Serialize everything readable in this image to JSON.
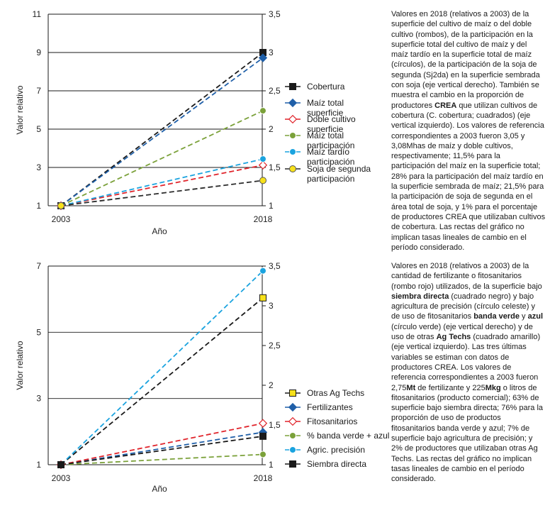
{
  "chart_data": [
    {
      "type": "line",
      "x": [
        "2003",
        "2018"
      ],
      "xlabel": "Año",
      "ylabel": "Valor relativo",
      "ylim": [
        1,
        11
      ],
      "y_ticks": [
        "1",
        "3",
        "5",
        "7",
        "9",
        "11"
      ],
      "y2lim": [
        1,
        3.5
      ],
      "y2_ticks": [
        "1",
        "1,5",
        "2",
        "2,5",
        "3",
        "3,5"
      ],
      "grid": "horizontal",
      "legend_position": "right",
      "series": [
        {
          "name": "Cobertura",
          "axis": "left",
          "values": [
            1,
            9.0
          ],
          "color": "#1a1a1a",
          "marker": "square-filled"
        },
        {
          "name": "Maíz total superficie",
          "axis": "right",
          "values": [
            1,
            2.93
          ],
          "color": "#1f5fa8",
          "marker": "diamond-filled"
        },
        {
          "name": "Doble cultivo superficie",
          "axis": "right",
          "values": [
            1,
            1.53
          ],
          "color": "#e0242b",
          "marker": "diamond-open"
        },
        {
          "name": "Maíz total participación",
          "axis": "right",
          "values": [
            1,
            2.24
          ],
          "color": "#7ba13a",
          "marker": "circle-filled"
        },
        {
          "name": "Maíz tardío participación",
          "axis": "right",
          "values": [
            1,
            1.61
          ],
          "color": "#1aa3df",
          "marker": "circle-filled"
        },
        {
          "name": "Soja de segunda participación",
          "axis": "right",
          "values": [
            1,
            1.33
          ],
          "color": "#2b2b2b",
          "marker": "circle-yellow"
        }
      ],
      "legend_lines": [
        [
          "Cobertura"
        ],
        [
          "Maíz total",
          "superficie"
        ],
        [
          "Doble cultivo",
          "superficie"
        ],
        [
          "Maíz total",
          "participación"
        ],
        [
          "Maíz tardío",
          "participación"
        ],
        [
          "Soja de segunda",
          "participación"
        ]
      ]
    },
    {
      "type": "line",
      "x": [
        "2003",
        "2018"
      ],
      "xlabel": "Año",
      "ylabel": "Valor relativo",
      "ylim": [
        1,
        7
      ],
      "y_ticks": [
        "1",
        "3",
        "5",
        "7"
      ],
      "y2lim": [
        1,
        3.5
      ],
      "y2_ticks": [
        "1",
        "1,5",
        "2",
        "2,5",
        "3",
        "3,5"
      ],
      "grid": "horizontal",
      "legend_position": "right",
      "series": [
        {
          "name": "Otras Ag Techs",
          "axis": "right",
          "values": [
            1,
            3.1
          ],
          "color": "#1a1a1a",
          "marker": "square-yellow"
        },
        {
          "name": "Fertilizantes",
          "axis": "left",
          "values": [
            1,
            1.98
          ],
          "color": "#1f5fa8",
          "marker": "diamond-filled"
        },
        {
          "name": "Fitosanitarios",
          "axis": "left",
          "values": [
            1,
            2.25
          ],
          "color": "#e0242b",
          "marker": "diamond-open"
        },
        {
          "name": "% banda verde + azul",
          "axis": "right",
          "values": [
            1,
            1.13
          ],
          "color": "#7ba13a",
          "marker": "circle-filled"
        },
        {
          "name": "Agric. precisión",
          "axis": "right",
          "values": [
            1,
            3.44
          ],
          "color": "#1aa3df",
          "marker": "circle-filled"
        },
        {
          "name": "Siembra directa",
          "axis": "left",
          "values": [
            1,
            1.86
          ],
          "color": "#1a1a1a",
          "marker": "square-filled"
        }
      ],
      "legend_lines": [
        [
          "Otras Ag Techs"
        ],
        [
          "Fertilizantes"
        ],
        [
          "Fitosanitarios"
        ],
        [
          "% banda verde + azul"
        ],
        [
          "Agric. precisión"
        ],
        [
          "Siembra directa"
        ]
      ]
    }
  ],
  "captions": [
    [
      {
        "t": "Valores en 2018 (relativos a 2003) de la superficie del cultivo de maíz o del doble cultivo (rombos), de la participación en la superficie total del cultivo de maíz y del maíz tardío en la superficie total de maíz (círculos), de la participación de la soja de segunda (Sj2da) en la superficie sembrada con soja (eje vertical derecho). También se muestra el cambio en la proporción de productores "
      },
      {
        "t": "CREA",
        "b": true
      },
      {
        "t": " que utilizan cultivos de cobertura (C. cobertura; cuadrados) (eje vertical izquierdo). Los valores de referencia correspondientes a 2003 fueron 3,05 y 3,08Mhas de maíz y doble cultivos, respectivamente; 11,5% para la participación del maíz en la superficie total; 28% para la participación del maíz tardío en la superficie sembrada de maíz; 21,5% para la participación de soja de segunda en el área total de soja, y 1% para el porcentaje de productores CREA que utilizaban cultivos de cobertura. Las rectas del gráfico no implican tasas lineales de cambio en el período considerado."
      }
    ],
    [
      {
        "t": "Valores en 2018 (relativos a 2003) de la cantidad de fertilizante o fitosanitarios (rombo rojo) utilizados, de la superficie bajo "
      },
      {
        "t": "siembra directa",
        "b": true
      },
      {
        "t": " (cuadrado negro) y bajo agricultura de precisión (círculo celeste) y de uso de fitosanitarios "
      },
      {
        "t": "banda verde",
        "b": true
      },
      {
        "t": " y "
      },
      {
        "t": "azul",
        "b": true
      },
      {
        "t": " (círculo verde) (eje vertical derecho) y de uso de otras "
      },
      {
        "t": "Ag Techs",
        "b": true
      },
      {
        "t": " (cuadrado amarillo) (eje vertical izquierdo). Las tres últimas variables se estiman con datos de productores CREA. Los valores de referencia correspondientes a 2003 fueron 2,75"
      },
      {
        "t": "Mt",
        "b": true
      },
      {
        "t": " de fertilizante y 225"
      },
      {
        "t": "Mkg",
        "b": true
      },
      {
        "t": " o litros de fitosanitarios (producto comercial); 63% de superficie bajo siembra directa; 76% para la proporción de uso de productos fitosanitarios banda verde y azul; 7% de superficie bajo agricultura de precisión; y 2% de productores que utilizaban otras Ag Techs. Las rectas del gráfico no implican tasas lineales de cambio en el período considerado."
      }
    ]
  ]
}
